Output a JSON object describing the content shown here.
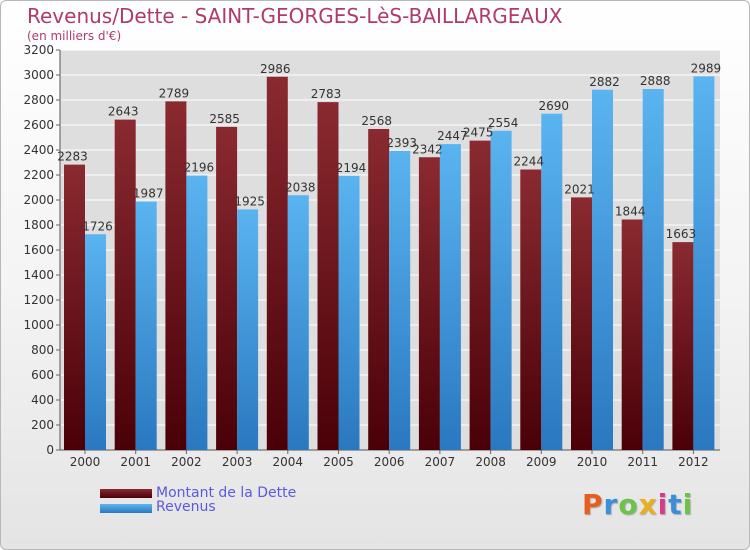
{
  "header": {
    "title": "Revenus/Dette - SAINT-GEORGES-LèS-BAILLARGEAUX",
    "subtitle": "(en milliers d'€)"
  },
  "legend": [
    {
      "label": "Montant de la Dette",
      "color": "#7a1a22"
    },
    {
      "label": "Revenus",
      "color": "#4da6e8"
    }
  ],
  "logo": {
    "letters": [
      "P",
      "r",
      "o",
      "x",
      "i",
      "t",
      "i"
    ],
    "colors": [
      "#e85d1f",
      "#3a8fd8",
      "#6cc24a",
      "#e8b020",
      "#d83a8a",
      "#3a8fd8",
      "#6cc24a"
    ]
  },
  "chart_data": {
    "type": "bar",
    "categories": [
      "2000",
      "2001",
      "2002",
      "2003",
      "2004",
      "2005",
      "2006",
      "2007",
      "2008",
      "2009",
      "2010",
      "2011",
      "2012"
    ],
    "series": [
      {
        "name": "Montant de la Dette",
        "color": "#7a1a22",
        "values": [
          2283,
          2643,
          2789,
          2585,
          2986,
          2783,
          2568,
          2342,
          2475,
          2244,
          2021,
          1844,
          1663
        ],
        "labels": [
          "2283",
          "2643",
          "2789",
          "2585",
          "2986",
          "2783",
          "2568",
          "2342",
          "2475",
          "2244",
          "2021",
          "1844",
          "1663"
        ]
      },
      {
        "name": "Revenus",
        "color": "#4da6e8",
        "values": [
          1726,
          1987,
          2196,
          1925,
          2038,
          2194,
          2393,
          2447,
          2554,
          2690,
          2882,
          2888,
          2989
        ],
        "labels": [
          "1726",
          "1987",
          "2196",
          "1925",
          "2038",
          "2194",
          "2393",
          "2447",
          "2554",
          "2690",
          "2882",
          "2888",
          "2989"
        ]
      }
    ],
    "ylim": [
      0,
      3200
    ],
    "yticks": [
      0,
      200,
      400,
      600,
      800,
      1000,
      1200,
      1400,
      1600,
      1800,
      2000,
      2200,
      2400,
      2600,
      2800,
      3000,
      3200
    ],
    "grid": true,
    "legend_position": "bottom-left"
  }
}
